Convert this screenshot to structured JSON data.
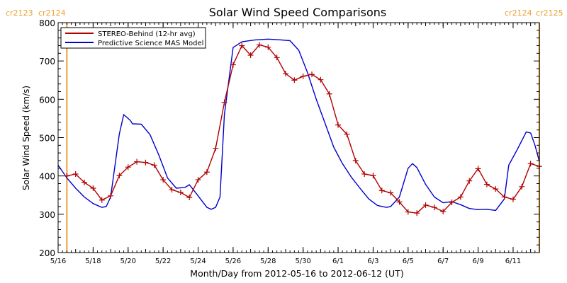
{
  "chart_data": {
    "type": "line",
    "title": "Solar Wind Speed Comparisons",
    "xlabel": "Month/Day from 2012-05-16 to 2012-06-12 (UT)",
    "ylabel": "Solar Wind Speed (km/s)",
    "xlim": [
      "2012-05-16T00:00",
      "2012-06-12T12:00"
    ],
    "ylim": [
      200,
      800
    ],
    "yticks": [
      200,
      300,
      400,
      500,
      600,
      700,
      800
    ],
    "xtick_labels": [
      {
        "date": "2012-05-16",
        "label": "5/16"
      },
      {
        "date": "2012-05-18",
        "label": "5/18"
      },
      {
        "date": "2012-05-20",
        "label": "5/20"
      },
      {
        "date": "2012-05-22",
        "label": "5/22"
      },
      {
        "date": "2012-05-24",
        "label": "5/24"
      },
      {
        "date": "2012-05-26",
        "label": "5/26"
      },
      {
        "date": "2012-05-28",
        "label": "5/28"
      },
      {
        "date": "2012-05-30",
        "label": "5/30"
      },
      {
        "date": "2012-06-01",
        "label": "6/1"
      },
      {
        "date": "2012-06-03",
        "label": "6/3"
      },
      {
        "date": "2012-06-05",
        "label": "6/5"
      },
      {
        "date": "2012-06-07",
        "label": "6/7"
      },
      {
        "date": "2012-06-09",
        "label": "6/9"
      },
      {
        "date": "2012-06-11",
        "label": "6/11"
      }
    ],
    "grid": false,
    "legend_position": "top-left",
    "carrington_markers": [
      {
        "date": "2012-05-16T12:00",
        "label_left": "cr2123",
        "label_right": "cr2124",
        "side": "left"
      },
      {
        "date": "2012-06-12T12:00",
        "label_left": "cr2124",
        "label_right": "cr2125",
        "side": "right"
      }
    ],
    "marker_color": "#f0a030",
    "series": [
      {
        "name": "STEREO-Behind (12-hr avg)",
        "color": "#b00000",
        "marker": "plus",
        "points": [
          [
            "2012-05-16T12:00",
            400
          ],
          [
            "2012-05-17T00:00",
            405
          ],
          [
            "2012-05-17T12:00",
            383
          ],
          [
            "2012-05-18T00:00",
            368
          ],
          [
            "2012-05-18T12:00",
            337
          ],
          [
            "2012-05-19T00:00",
            348
          ],
          [
            "2012-05-19T12:00",
            401
          ],
          [
            "2012-05-20T00:00",
            423
          ],
          [
            "2012-05-20T12:00",
            437
          ],
          [
            "2012-05-21T00:00",
            435
          ],
          [
            "2012-05-21T12:00",
            428
          ],
          [
            "2012-05-22T00:00",
            390
          ],
          [
            "2012-05-22T12:00",
            364
          ],
          [
            "2012-05-23T00:00",
            357
          ],
          [
            "2012-05-23T12:00",
            344
          ],
          [
            "2012-05-24T00:00",
            390
          ],
          [
            "2012-05-24T12:00",
            410
          ],
          [
            "2012-05-25T00:00",
            472
          ],
          [
            "2012-05-25T12:00",
            592
          ],
          [
            "2012-05-26T00:00",
            690
          ],
          [
            "2012-05-26T12:00",
            740
          ],
          [
            "2012-05-27T00:00",
            715
          ],
          [
            "2012-05-27T12:00",
            742
          ],
          [
            "2012-05-28T00:00",
            736
          ],
          [
            "2012-05-28T12:00",
            709
          ],
          [
            "2012-05-29T00:00",
            667
          ],
          [
            "2012-05-29T12:00",
            650
          ],
          [
            "2012-05-30T00:00",
            660
          ],
          [
            "2012-05-30T12:00",
            665
          ],
          [
            "2012-05-31T00:00",
            651
          ],
          [
            "2012-05-31T12:00",
            614
          ],
          [
            "2012-06-01T00:00",
            533
          ],
          [
            "2012-06-01T12:00",
            509
          ],
          [
            "2012-06-02T00:00",
            440
          ],
          [
            "2012-06-02T12:00",
            405
          ],
          [
            "2012-06-03T00:00",
            401
          ],
          [
            "2012-06-03T12:00",
            362
          ],
          [
            "2012-06-04T00:00",
            356
          ],
          [
            "2012-06-04T12:00",
            332
          ],
          [
            "2012-06-05T00:00",
            306
          ],
          [
            "2012-06-05T12:00",
            303
          ],
          [
            "2012-06-06T00:00",
            324
          ],
          [
            "2012-06-06T12:00",
            318
          ],
          [
            "2012-06-07T00:00",
            307
          ],
          [
            "2012-06-07T12:00",
            331
          ],
          [
            "2012-06-08T00:00",
            345
          ],
          [
            "2012-06-08T12:00",
            387
          ],
          [
            "2012-06-09T00:00",
            419
          ],
          [
            "2012-06-09T12:00",
            378
          ],
          [
            "2012-06-10T00:00",
            366
          ],
          [
            "2012-06-10T12:00",
            345
          ],
          [
            "2012-06-11T00:00",
            339
          ],
          [
            "2012-06-11T12:00",
            372
          ],
          [
            "2012-06-12T00:00",
            432
          ],
          [
            "2012-06-12T12:00",
            425
          ]
        ]
      },
      {
        "name": "Predictive Science MAS Model",
        "color": "#0000cc",
        "marker": "none",
        "points": [
          [
            "2012-05-16T00:00",
            428
          ],
          [
            "2012-05-16T12:00",
            395
          ],
          [
            "2012-05-17T00:00",
            368
          ],
          [
            "2012-05-17T12:00",
            345
          ],
          [
            "2012-05-18T00:00",
            328
          ],
          [
            "2012-05-18T12:00",
            318
          ],
          [
            "2012-05-18T18:00",
            320
          ],
          [
            "2012-05-19T00:00",
            345
          ],
          [
            "2012-05-19T12:00",
            510
          ],
          [
            "2012-05-19T18:00",
            560
          ],
          [
            "2012-05-20T03:00",
            545
          ],
          [
            "2012-05-20T06:00",
            536
          ],
          [
            "2012-05-20T18:00",
            535
          ],
          [
            "2012-05-21T06:00",
            508
          ],
          [
            "2012-05-21T18:00",
            455
          ],
          [
            "2012-05-22T06:00",
            395
          ],
          [
            "2012-05-22T18:00",
            368
          ],
          [
            "2012-05-23T06:00",
            370
          ],
          [
            "2012-05-23T12:00",
            377
          ],
          [
            "2012-05-24T00:00",
            348
          ],
          [
            "2012-05-24T12:00",
            318
          ],
          [
            "2012-05-24T18:00",
            313
          ],
          [
            "2012-05-25T00:00",
            318
          ],
          [
            "2012-05-25T06:00",
            345
          ],
          [
            "2012-05-25T12:00",
            560
          ],
          [
            "2012-05-26T00:00",
            735
          ],
          [
            "2012-05-26T12:00",
            750
          ],
          [
            "2012-05-27T06:00",
            755
          ],
          [
            "2012-05-28T00:00",
            757
          ],
          [
            "2012-05-28T18:00",
            755
          ],
          [
            "2012-05-29T06:00",
            753
          ],
          [
            "2012-05-29T18:00",
            728
          ],
          [
            "2012-05-30T06:00",
            670
          ],
          [
            "2012-05-30T18:00",
            600
          ],
          [
            "2012-05-31T06:00",
            538
          ],
          [
            "2012-05-31T18:00",
            475
          ],
          [
            "2012-06-01T06:00",
            432
          ],
          [
            "2012-06-01T18:00",
            397
          ],
          [
            "2012-06-02T06:00",
            368
          ],
          [
            "2012-06-02T18:00",
            340
          ],
          [
            "2012-06-03T06:00",
            323
          ],
          [
            "2012-06-03T18:00",
            318
          ],
          [
            "2012-06-04T00:00",
            320
          ],
          [
            "2012-06-04T12:00",
            345
          ],
          [
            "2012-06-05T00:00",
            420
          ],
          [
            "2012-06-05T06:00",
            432
          ],
          [
            "2012-06-05T12:00",
            422
          ],
          [
            "2012-06-06T00:00",
            378
          ],
          [
            "2012-06-06T12:00",
            345
          ],
          [
            "2012-06-07T00:00",
            330
          ],
          [
            "2012-06-07T12:00",
            333
          ],
          [
            "2012-06-08T00:00",
            325
          ],
          [
            "2012-06-08T12:00",
            315
          ],
          [
            "2012-06-09T00:00",
            312
          ],
          [
            "2012-06-09T12:00",
            313
          ],
          [
            "2012-06-10T00:00",
            310
          ],
          [
            "2012-06-10T12:00",
            340
          ],
          [
            "2012-06-10T18:00",
            428
          ],
          [
            "2012-06-11T06:00",
            470
          ],
          [
            "2012-06-11T18:00",
            515
          ],
          [
            "2012-06-12T00:00",
            512
          ],
          [
            "2012-06-12T06:00",
            480
          ],
          [
            "2012-06-12T12:00",
            438
          ]
        ]
      }
    ]
  }
}
